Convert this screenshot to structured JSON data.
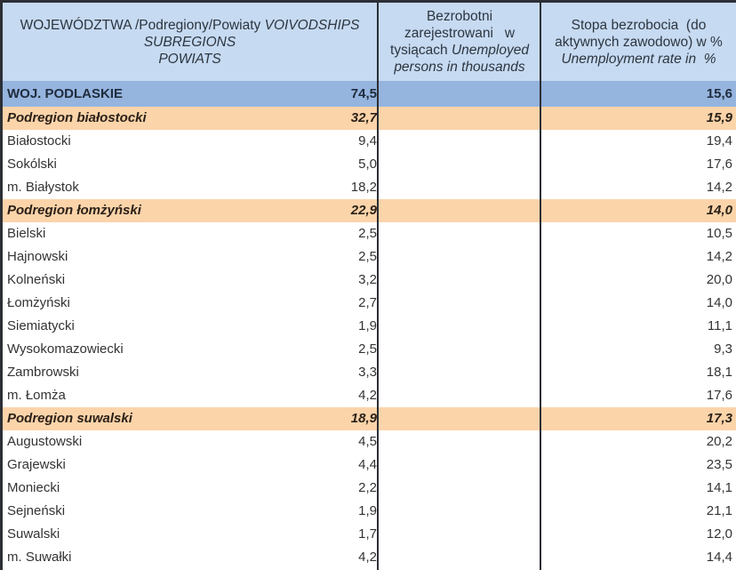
{
  "header": {
    "col1": {
      "line1_pl": "WOJEWÓDZTWA /Podregiony/Powiaty",
      "line1_en": "VOIVODSHIPS",
      "line2": "SUBREGIONS",
      "line3": "POWIATS"
    },
    "col2": {
      "line1": "Bezrobotni",
      "line2": "zarejestrowani   w",
      "line3_pl": "tysiącach",
      "line3_en": "Unemployed",
      "line4": "persons in thousands"
    },
    "col3": {
      "line1": "Stopa bezrobocia  (do",
      "line2": "aktywnych zawodowo) w %",
      "line3": "Unemployment rate in  %"
    }
  },
  "colors": {
    "header_bg": "#c6daf1",
    "total_bg": "#95b4de",
    "subregion_bg": "#fcd4aa",
    "border": "#2c2f35"
  },
  "rows": [
    {
      "type": "total",
      "name": "WOJ. PODLASKIE",
      "unemployed": "74,5",
      "rate": "15,6"
    },
    {
      "type": "sub",
      "name": "Podregion białostocki",
      "unemployed": "32,7",
      "rate": "15,9"
    },
    {
      "type": "plain",
      "name": "Białostocki",
      "unemployed": "9,4",
      "rate": "19,4"
    },
    {
      "type": "plain",
      "name": "Sokólski",
      "unemployed": "5,0",
      "rate": "17,6"
    },
    {
      "type": "plain",
      "name": "m. Białystok",
      "unemployed": "18,2",
      "rate": "14,2"
    },
    {
      "type": "sub",
      "name": "Podregion łomżyński",
      "unemployed": "22,9",
      "rate": "14,0"
    },
    {
      "type": "plain",
      "name": "Bielski",
      "unemployed": "2,5",
      "rate": "10,5"
    },
    {
      "type": "plain",
      "name": "Hajnowski",
      "unemployed": "2,5",
      "rate": "14,2"
    },
    {
      "type": "plain",
      "name": "Kolneński",
      "unemployed": "3,2",
      "rate": "20,0"
    },
    {
      "type": "plain",
      "name": "Łomżyński",
      "unemployed": "2,7",
      "rate": "14,0"
    },
    {
      "type": "plain",
      "name": "Siemiatycki",
      "unemployed": "1,9",
      "rate": "11,1"
    },
    {
      "type": "plain",
      "name": "Wysokomazowiecki",
      "unemployed": "2,5",
      "rate": "9,3"
    },
    {
      "type": "plain",
      "name": "Zambrowski",
      "unemployed": "3,3",
      "rate": "18,1"
    },
    {
      "type": "plain",
      "name": "m. Łomża",
      "unemployed": "4,2",
      "rate": "17,6"
    },
    {
      "type": "sub",
      "name": "Podregion suwalski",
      "unemployed": "18,9",
      "rate": "17,3"
    },
    {
      "type": "plain",
      "name": "Augustowski",
      "unemployed": "4,5",
      "rate": "20,2"
    },
    {
      "type": "plain",
      "name": "Grajewski",
      "unemployed": "4,4",
      "rate": "23,5"
    },
    {
      "type": "plain",
      "name": "Moniecki",
      "unemployed": "2,2",
      "rate": "14,1"
    },
    {
      "type": "plain",
      "name": "Sejneński",
      "unemployed": "1,9",
      "rate": "21,1"
    },
    {
      "type": "plain",
      "name": "Suwalski",
      "unemployed": "1,7",
      "rate": "12,0"
    },
    {
      "type": "plain",
      "name": "m. Suwałki",
      "unemployed": "4,2",
      "rate": "14,4"
    }
  ]
}
